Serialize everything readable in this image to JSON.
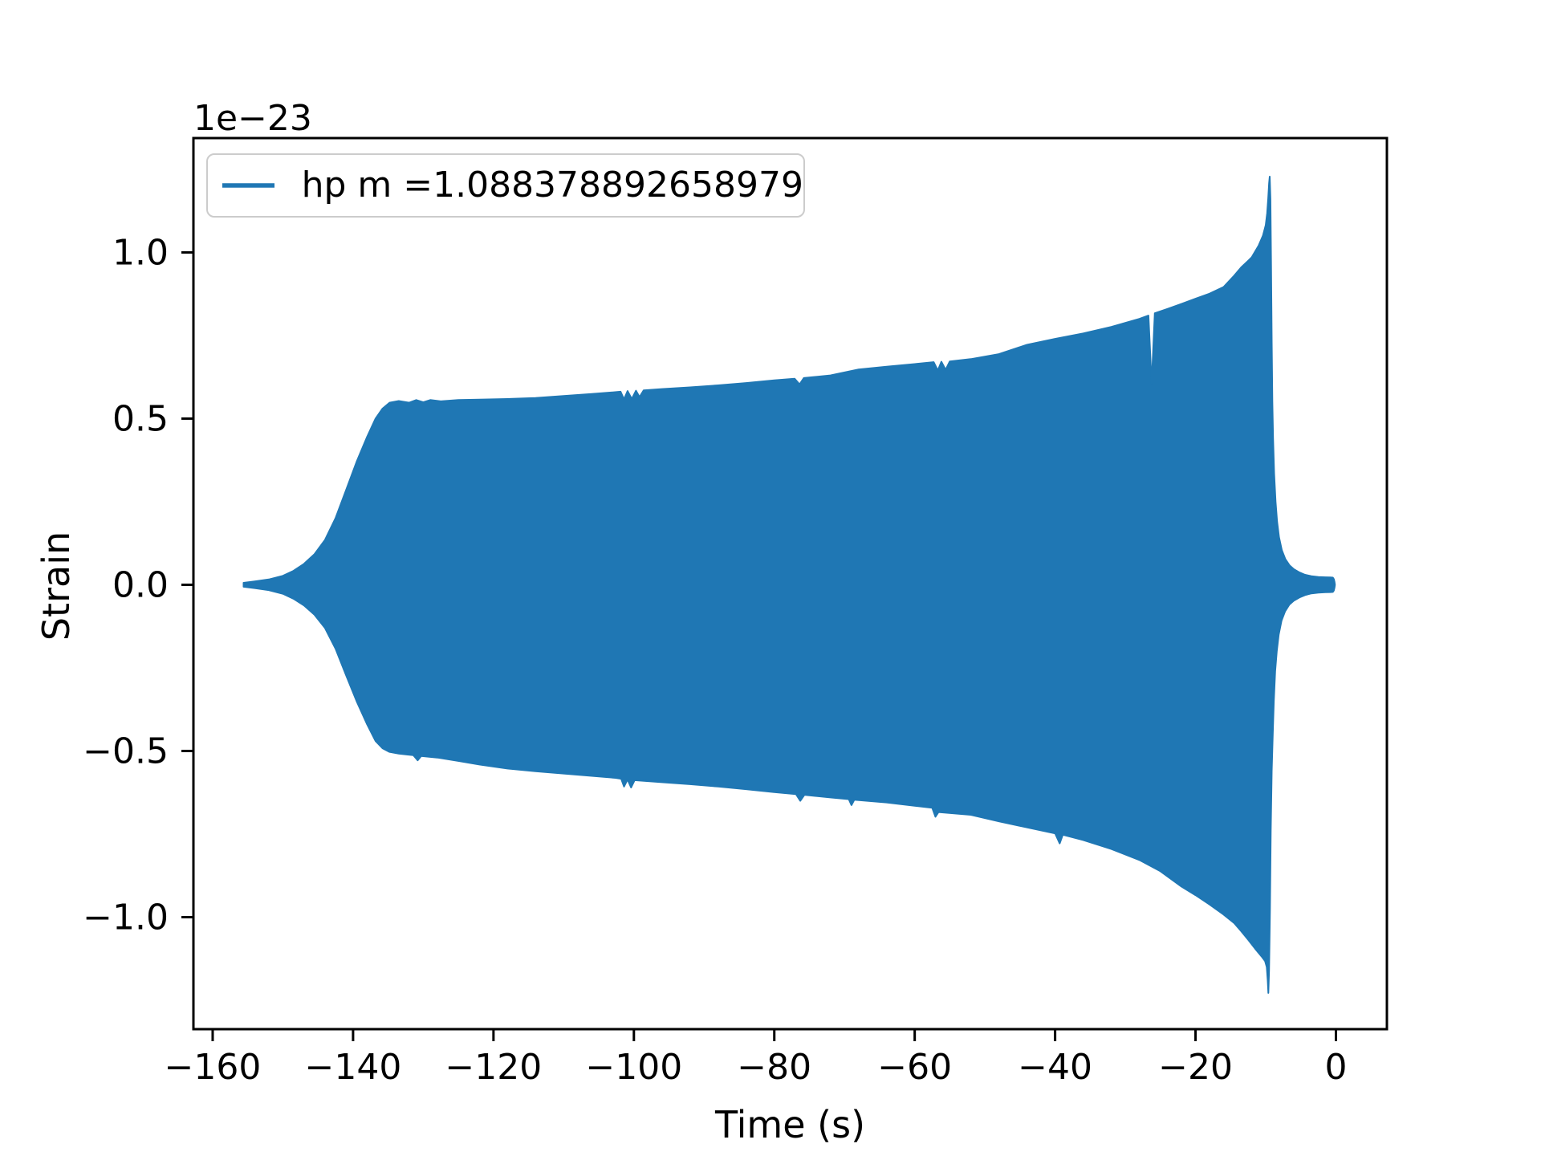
{
  "figure": {
    "background": "#ffffff"
  },
  "chart_data": {
    "type": "area",
    "description": "Gravitational-wave strain time series (oscillation envelope rendered as solid filled region)",
    "title": "",
    "xlabel": "Time (s)",
    "ylabel": "Strain",
    "y_offset_text": "1e−23",
    "series_color": "#1f77b4",
    "axis_color": "#000000",
    "grid": false,
    "xlim": [
      -162.74,
      7.26
    ],
    "ylim": [
      -1.337,
      1.344
    ],
    "xticks": [
      {
        "value": -160,
        "label": "−160"
      },
      {
        "value": -140,
        "label": "−140"
      },
      {
        "value": -120,
        "label": "−120"
      },
      {
        "value": -100,
        "label": "−100"
      },
      {
        "value": -80,
        "label": "−80"
      },
      {
        "value": -60,
        "label": "−60"
      },
      {
        "value": -40,
        "label": "−40"
      },
      {
        "value": -20,
        "label": "−20"
      },
      {
        "value": 0,
        "label": "0"
      }
    ],
    "yticks": [
      {
        "value": 1.0,
        "label": "1.0"
      },
      {
        "value": 0.5,
        "label": "0.5"
      },
      {
        "value": 0.0,
        "label": "0.0"
      },
      {
        "value": -0.5,
        "label": "−0.5"
      },
      {
        "value": -1.0,
        "label": "−1.0"
      }
    ],
    "legend": {
      "label": "hp m =1.088378892658979",
      "line_color": "#1f77b4",
      "location": "upper left"
    },
    "envelope_units": "1e-23 strain",
    "envelope": {
      "upper": [
        [
          -155.6,
          0.006
        ],
        [
          -154,
          0.01
        ],
        [
          -152,
          0.016
        ],
        [
          -150,
          0.027
        ],
        [
          -148.5,
          0.042
        ],
        [
          -147,
          0.063
        ],
        [
          -145.5,
          0.092
        ],
        [
          -144,
          0.135
        ],
        [
          -142.5,
          0.2
        ],
        [
          -141,
          0.285
        ],
        [
          -139.5,
          0.37
        ],
        [
          -138,
          0.445
        ],
        [
          -136.8,
          0.5
        ],
        [
          -135.8,
          0.53
        ],
        [
          -134.8,
          0.548
        ],
        [
          -133.5,
          0.553
        ],
        [
          -132,
          0.548
        ],
        [
          -131,
          0.556
        ],
        [
          -130,
          0.549
        ],
        [
          -129,
          0.556
        ],
        [
          -127.5,
          0.552
        ],
        [
          -125,
          0.556
        ],
        [
          -122,
          0.557
        ],
        [
          -118,
          0.559
        ],
        [
          -114,
          0.562
        ],
        [
          -110,
          0.568
        ],
        [
          -106,
          0.574
        ],
        [
          -103,
          0.579
        ],
        [
          -101.9,
          0.581
        ],
        [
          -101.4,
          0.558
        ],
        [
          -100.9,
          0.583
        ],
        [
          -100.3,
          0.559
        ],
        [
          -99.7,
          0.584
        ],
        [
          -99.2,
          0.565
        ],
        [
          -98.6,
          0.585
        ],
        [
          -96,
          0.589
        ],
        [
          -92,
          0.594
        ],
        [
          -88,
          0.6
        ],
        [
          -84,
          0.607
        ],
        [
          -80,
          0.615
        ],
        [
          -77.1,
          0.62
        ],
        [
          -76.4,
          0.603
        ],
        [
          -75.8,
          0.622
        ],
        [
          -72,
          0.63
        ],
        [
          -68,
          0.648
        ],
        [
          -64,
          0.656
        ],
        [
          -60,
          0.664
        ],
        [
          -57.3,
          0.67
        ],
        [
          -56.7,
          0.645
        ],
        [
          -56.2,
          0.671
        ],
        [
          -55.6,
          0.647
        ],
        [
          -55,
          0.672
        ],
        [
          -52,
          0.679
        ],
        [
          -48,
          0.694
        ],
        [
          -44,
          0.722
        ],
        [
          -40,
          0.74
        ],
        [
          -36,
          0.756
        ],
        [
          -32,
          0.776
        ],
        [
          -28,
          0.8
        ],
        [
          -26.7,
          0.81
        ],
        [
          -26.25,
          0.603
        ],
        [
          -25.8,
          0.817
        ],
        [
          -24,
          0.83
        ],
        [
          -22,
          0.845
        ],
        [
          -20,
          0.861
        ],
        [
          -18,
          0.876
        ],
        [
          -16,
          0.896
        ],
        [
          -14.5,
          0.93
        ],
        [
          -13.5,
          0.955
        ],
        [
          -12.5,
          0.975
        ],
        [
          -12,
          0.985
        ],
        [
          -11,
          1.021
        ],
        [
          -10.4,
          1.05
        ],
        [
          -10,
          1.082
        ],
        [
          -9.8,
          1.118
        ],
        [
          -9.65,
          1.162
        ],
        [
          -9.52,
          1.208
        ],
        [
          -9.43,
          1.228
        ],
        [
          -9.33,
          1.16
        ],
        [
          -9.24,
          0.96
        ],
        [
          -9.15,
          0.73
        ],
        [
          -9.05,
          0.55
        ],
        [
          -8.95,
          0.44
        ],
        [
          -8.8,
          0.335
        ],
        [
          -8.6,
          0.25
        ],
        [
          -8.38,
          0.19
        ],
        [
          -8.1,
          0.143
        ],
        [
          -7.7,
          0.104
        ],
        [
          -7.2,
          0.077
        ],
        [
          -6.6,
          0.058
        ],
        [
          -6,
          0.047
        ],
        [
          -5.2,
          0.037
        ],
        [
          -4.4,
          0.03
        ],
        [
          -3.5,
          0.026
        ],
        [
          -2.5,
          0.0235
        ],
        [
          -1.5,
          0.0225
        ],
        [
          -0.8,
          0.022
        ],
        [
          -0.45,
          0.0215
        ],
        [
          -0.3,
          0.017
        ],
        [
          -0.2,
          0.009
        ],
        [
          -0.15,
          0.001
        ]
      ],
      "lower": [
        [
          -155.6,
          -0.006
        ],
        [
          -154,
          -0.01
        ],
        [
          -152,
          -0.016
        ],
        [
          -150,
          -0.027
        ],
        [
          -148.5,
          -0.042
        ],
        [
          -147,
          -0.062
        ],
        [
          -145.5,
          -0.09
        ],
        [
          -144,
          -0.13
        ],
        [
          -142.5,
          -0.192
        ],
        [
          -141,
          -0.272
        ],
        [
          -139.5,
          -0.35
        ],
        [
          -138,
          -0.42
        ],
        [
          -136.8,
          -0.47
        ],
        [
          -135.8,
          -0.492
        ],
        [
          -134.8,
          -0.503
        ],
        [
          -133.5,
          -0.508
        ],
        [
          -131.4,
          -0.513
        ],
        [
          -130.8,
          -0.528
        ],
        [
          -130.3,
          -0.515
        ],
        [
          -128,
          -0.52
        ],
        [
          -125,
          -0.53
        ],
        [
          -122,
          -0.541
        ],
        [
          -118,
          -0.553
        ],
        [
          -114,
          -0.561
        ],
        [
          -110,
          -0.568
        ],
        [
          -106,
          -0.575
        ],
        [
          -102.6,
          -0.581
        ],
        [
          -101.8,
          -0.584
        ],
        [
          -101.4,
          -0.607
        ],
        [
          -100.9,
          -0.586
        ],
        [
          -100.4,
          -0.61
        ],
        [
          -99.9,
          -0.588
        ],
        [
          -96,
          -0.594
        ],
        [
          -92,
          -0.6
        ],
        [
          -88,
          -0.607
        ],
        [
          -84,
          -0.615
        ],
        [
          -80,
          -0.624
        ],
        [
          -76.9,
          -0.63
        ],
        [
          -76.3,
          -0.65
        ],
        [
          -75.7,
          -0.632
        ],
        [
          -72,
          -0.64
        ],
        [
          -69.4,
          -0.645
        ],
        [
          -69,
          -0.663
        ],
        [
          -68.6,
          -0.647
        ],
        [
          -64,
          -0.655
        ],
        [
          -60,
          -0.665
        ],
        [
          -57.5,
          -0.671
        ],
        [
          -57.05,
          -0.698
        ],
        [
          -56.6,
          -0.684
        ],
        [
          -52,
          -0.692
        ],
        [
          -48,
          -0.712
        ],
        [
          -44,
          -0.73
        ],
        [
          -40,
          -0.748
        ],
        [
          -39.35,
          -0.778
        ],
        [
          -38.9,
          -0.752
        ],
        [
          -36,
          -0.768
        ],
        [
          -32,
          -0.795
        ],
        [
          -28,
          -0.828
        ],
        [
          -25,
          -0.862
        ],
        [
          -22,
          -0.908
        ],
        [
          -20,
          -0.934
        ],
        [
          -18,
          -0.962
        ],
        [
          -16,
          -0.992
        ],
        [
          -14.5,
          -1.018
        ],
        [
          -13.5,
          -1.042
        ],
        [
          -12.5,
          -1.068
        ],
        [
          -11.5,
          -1.095
        ],
        [
          -10.6,
          -1.118
        ],
        [
          -10.1,
          -1.132
        ],
        [
          -9.85,
          -1.15
        ],
        [
          -9.72,
          -1.19
        ],
        [
          -9.62,
          -1.228
        ],
        [
          -9.52,
          -1.16
        ],
        [
          -9.4,
          -0.98
        ],
        [
          -9.28,
          -0.74
        ],
        [
          -9.15,
          -0.56
        ],
        [
          -9.0,
          -0.45
        ],
        [
          -8.85,
          -0.35
        ],
        [
          -8.65,
          -0.26
        ],
        [
          -8.42,
          -0.2
        ],
        [
          -8.15,
          -0.15
        ],
        [
          -7.75,
          -0.108
        ],
        [
          -7.25,
          -0.08
        ],
        [
          -6.65,
          -0.06
        ],
        [
          -6,
          -0.048
        ],
        [
          -5.2,
          -0.038
        ],
        [
          -4.4,
          -0.031
        ],
        [
          -3.5,
          -0.026
        ],
        [
          -2.5,
          -0.0235
        ],
        [
          -1.5,
          -0.0225
        ],
        [
          -0.8,
          -0.022
        ],
        [
          -0.45,
          -0.0215
        ],
        [
          -0.3,
          -0.017
        ],
        [
          -0.2,
          -0.009
        ],
        [
          -0.15,
          -0.001
        ]
      ]
    }
  }
}
